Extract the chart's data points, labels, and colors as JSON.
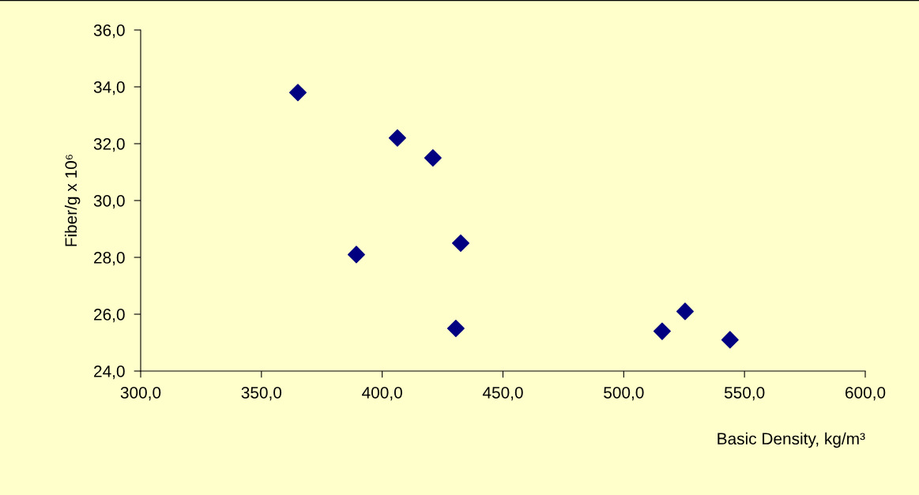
{
  "chart_data": {
    "type": "scatter",
    "xlabel": "Basic Density, kg/m³",
    "ylabel": "Fiber/g x 10⁶",
    "x": [
      365.1,
      406.3,
      421.0,
      389.3,
      432.5,
      430.5,
      515.9,
      525.4,
      544.0
    ],
    "values": [
      33.8,
      32.2,
      31.5,
      28.1,
      28.5,
      25.5,
      25.4,
      26.1,
      25.1
    ],
    "color": "#000080",
    "marker": "diamond",
    "grid": false,
    "xlim": [
      300,
      600
    ],
    "ylim": [
      24,
      36
    ],
    "xticks": [
      {
        "value": 300,
        "label": "300,0"
      },
      {
        "value": 350,
        "label": "350,0"
      },
      {
        "value": 400,
        "label": "400,0"
      },
      {
        "value": 450,
        "label": "450,0"
      },
      {
        "value": 500,
        "label": "500,0"
      },
      {
        "value": 550,
        "label": "550,0"
      },
      {
        "value": 600,
        "label": "600,0"
      }
    ],
    "yticks": [
      {
        "value": 24,
        "label": "24,0"
      },
      {
        "value": 26,
        "label": "26,0"
      },
      {
        "value": 28,
        "label": "28,0"
      },
      {
        "value": 30,
        "label": "30,0"
      },
      {
        "value": 32,
        "label": "32,0"
      },
      {
        "value": 34,
        "label": "34,0"
      },
      {
        "value": 36,
        "label": "36,0"
      }
    ]
  }
}
